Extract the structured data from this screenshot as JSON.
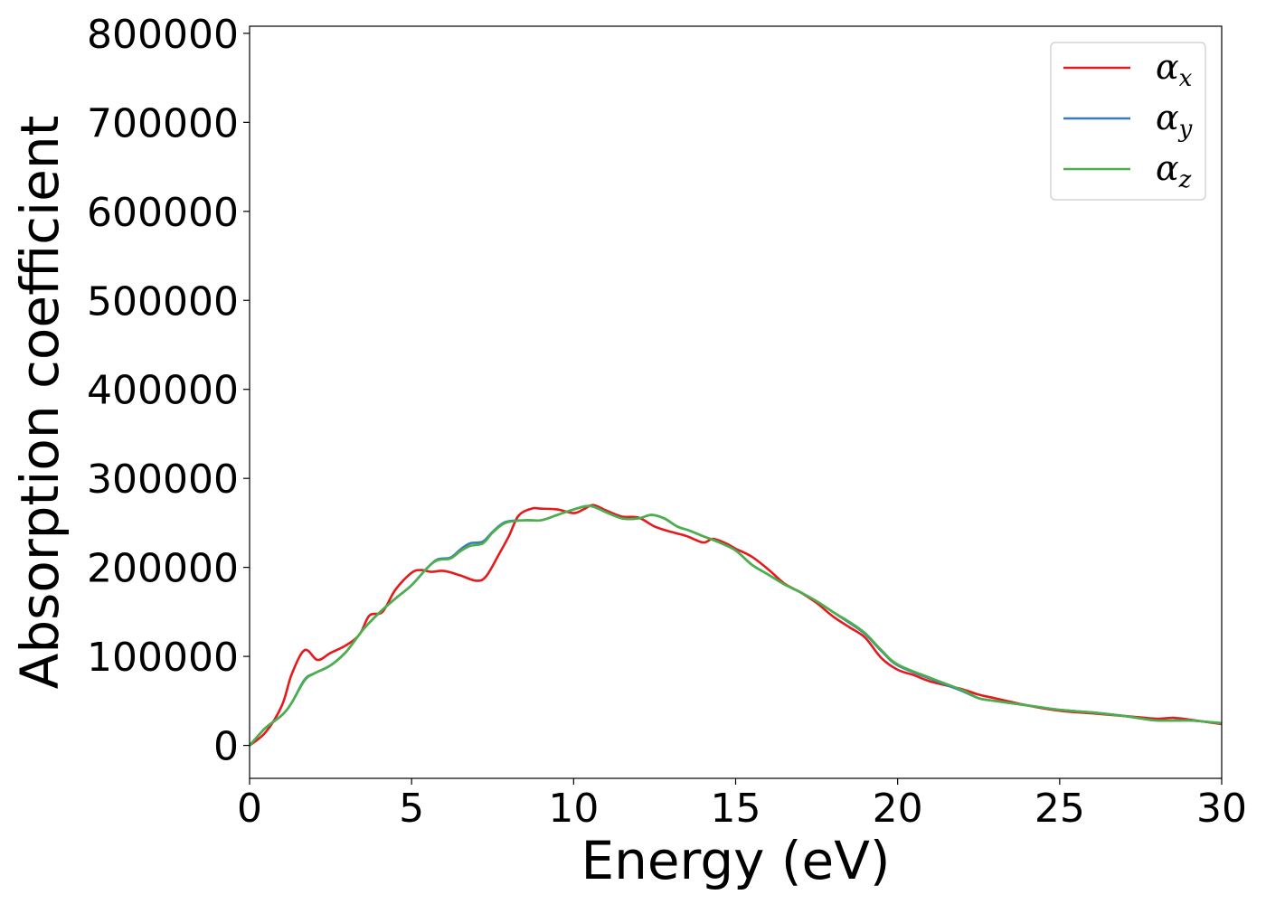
{
  "chart_data": {
    "type": "line",
    "title": "",
    "xlabel": "Energy (eV)",
    "ylabel": "Absorption coefficient",
    "xlim": [
      0,
      30
    ],
    "ylim": [
      -37000,
      808000
    ],
    "xticks": [
      0,
      5,
      10,
      15,
      20,
      25,
      30
    ],
    "xtick_labels": [
      "0",
      "5",
      "10",
      "15",
      "20",
      "25",
      "30"
    ],
    "yticks": [
      0,
      100000,
      200000,
      300000,
      400000,
      500000,
      600000,
      700000,
      800000
    ],
    "ytick_labels": [
      "0",
      "100000",
      "200000",
      "300000",
      "400000",
      "500000",
      "600000",
      "700000",
      "800000"
    ],
    "grid": false,
    "legend_position": "top-right",
    "series": [
      {
        "name": "αx",
        "legend_main": "α",
        "legend_sub": "x",
        "color": "#e41a1c",
        "x": [
          0,
          0.5,
          1.0,
          1.3,
          1.7,
          2.1,
          2.5,
          3.0,
          3.4,
          3.7,
          4.1,
          4.5,
          5.0,
          5.3,
          5.6,
          6.0,
          6.5,
          7.0,
          7.3,
          7.7,
          8.0,
          8.3,
          8.7,
          9.0,
          9.5,
          10.0,
          10.3,
          10.6,
          11.0,
          11.5,
          12.0,
          12.5,
          13.0,
          13.5,
          14.0,
          14.3,
          14.7,
          15.0,
          15.5,
          16.0,
          16.5,
          17.0,
          17.5,
          18.0,
          18.5,
          19.0,
          19.5,
          20.0,
          20.5,
          21.0,
          22.0,
          22.5,
          23.0,
          24.0,
          25.0,
          26.0,
          27.0,
          28.0,
          28.5,
          29.0,
          30.0
        ],
        "y": [
          0,
          15000,
          45000,
          80000,
          107000,
          96000,
          104000,
          113000,
          125000,
          146000,
          150000,
          175000,
          194000,
          197000,
          195000,
          196000,
          191000,
          185000,
          190000,
          215000,
          235000,
          258000,
          266000,
          266000,
          265000,
          261000,
          265000,
          270000,
          264000,
          257000,
          256000,
          246000,
          240000,
          235000,
          228000,
          232000,
          227000,
          221000,
          212000,
          198000,
          182000,
          172000,
          160000,
          145000,
          133000,
          121000,
          98000,
          85000,
          79000,
          72000,
          63000,
          57000,
          53000,
          45000,
          39000,
          36000,
          33000,
          30000,
          31000,
          29000,
          24000
        ]
      },
      {
        "name": "αy",
        "legend_main": "α",
        "legend_sub": "y",
        "color": "#377eb8",
        "x": [
          0,
          0.5,
          1.0,
          1.3,
          1.7,
          2.0,
          2.5,
          3.0,
          3.5,
          4.0,
          4.5,
          5.0,
          5.5,
          5.8,
          6.2,
          6.5,
          6.8,
          7.2,
          7.5,
          7.9,
          8.5,
          9.0,
          9.5,
          10.0,
          10.5,
          11.0,
          11.5,
          12.0,
          12.4,
          12.8,
          13.2,
          13.6,
          14.0,
          14.5,
          15.0,
          15.5,
          16.0,
          16.5,
          17.0,
          17.5,
          18.0,
          18.5,
          19.0,
          19.5,
          20.0,
          21.0,
          22.0,
          22.5,
          23.0,
          24.0,
          25.0,
          26.0,
          27.0,
          28.0,
          29.0,
          30.0
        ],
        "y": [
          0,
          20000,
          34000,
          48000,
          74000,
          81000,
          90000,
          106000,
          130000,
          149000,
          165000,
          180000,
          200000,
          209000,
          211000,
          220000,
          227000,
          229000,
          240000,
          251000,
          253000,
          253000,
          259000,
          265000,
          269000,
          262000,
          255000,
          255000,
          259000,
          255000,
          246000,
          241000,
          235000,
          228000,
          219000,
          203000,
          192000,
          181000,
          172000,
          162000,
          150000,
          138000,
          125000,
          106000,
          90000,
          75000,
          61000,
          53000,
          50000,
          45000,
          40000,
          37000,
          33000,
          28000,
          28000,
          25000
        ]
      },
      {
        "name": "αz",
        "legend_main": "α",
        "legend_sub": "z",
        "color": "#4daf4a",
        "x": [
          0,
          0.5,
          1.0,
          1.3,
          1.7,
          2.0,
          2.5,
          3.0,
          3.5,
          4.0,
          4.5,
          5.0,
          5.5,
          5.8,
          6.2,
          6.5,
          6.8,
          7.2,
          7.5,
          7.9,
          8.5,
          9.0,
          9.5,
          10.0,
          10.5,
          11.0,
          11.5,
          12.0,
          12.4,
          12.8,
          13.2,
          13.6,
          14.0,
          14.5,
          15.0,
          15.5,
          16.0,
          16.5,
          17.0,
          17.5,
          18.0,
          18.5,
          19.0,
          19.5,
          20.0,
          21.0,
          22.0,
          22.5,
          23.0,
          24.0,
          25.0,
          26.0,
          27.0,
          28.0,
          29.0,
          30.0
        ],
        "y": [
          0,
          20000,
          34000,
          48000,
          73000,
          81000,
          90000,
          106000,
          130000,
          149000,
          165000,
          180000,
          200000,
          208000,
          210000,
          218000,
          224000,
          227000,
          239000,
          250000,
          253000,
          253000,
          259000,
          265000,
          269000,
          262000,
          255000,
          255000,
          259000,
          255000,
          246000,
          241000,
          235000,
          228000,
          219000,
          203000,
          192000,
          181000,
          172000,
          162000,
          150000,
          139000,
          126000,
          107000,
          91000,
          76000,
          62000,
          53000,
          50000,
          45000,
          40000,
          37000,
          33000,
          28000,
          28000,
          25000
        ]
      }
    ]
  }
}
